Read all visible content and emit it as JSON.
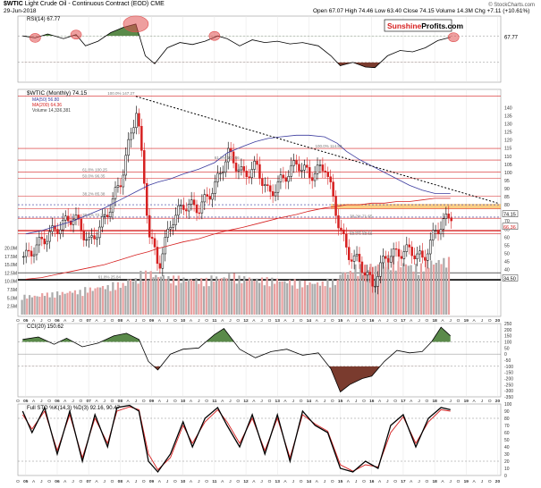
{
  "header": {
    "symbol": "$WTIC",
    "description": "Light Crude Oil - Continuous Contract (EOD)",
    "exchange": "CME",
    "date": "29-Jun-2018",
    "open": "Open 67.07",
    "high": "High 74.46",
    "low": "Low 63.40",
    "close": "Close 74.15",
    "volume": "Volume 14.3M",
    "chg": "Chg +7.11 (+10.61%)",
    "copyright": "© StockCharts.com"
  },
  "watermark": {
    "part1": "Sunshine",
    "part2": "Profits.com"
  },
  "colors": {
    "up": "#000000",
    "down": "#d62020",
    "ma50": "#3b3b9e",
    "ma200": "#d62020",
    "volume": "#aaaaaa",
    "volume_down": "#e8a0a0",
    "orange_band": "#f5a623",
    "highlight_circle": "#e05050"
  },
  "chart_data": [
    {
      "type": "line",
      "panel": "RSI",
      "title": "RSI(14) 67.77",
      "last_value_label": "67.77",
      "ylim": [
        0,
        100
      ],
      "y_ticks": [
        70,
        30
      ],
      "x": [
        2004.9,
        2005.3,
        2005.7,
        2006.2,
        2006.6,
        2006.9,
        2007.3,
        2007.7,
        2008.1,
        2008.5,
        2008.8,
        2009.1,
        2009.5,
        2009.9,
        2010.3,
        2010.7,
        2011.1,
        2011.4,
        2011.8,
        2012.2,
        2012.6,
        2013.0,
        2013.4,
        2013.8,
        2014.3,
        2014.7,
        2015.0,
        2015.4,
        2015.8,
        2016.1,
        2016.5,
        2016.9,
        2017.3,
        2017.7,
        2018.1,
        2018.5
      ],
      "values": [
        70,
        67,
        73,
        66,
        72,
        55,
        62,
        75,
        83,
        88,
        40,
        28,
        52,
        60,
        57,
        62,
        70,
        66,
        55,
        64,
        60,
        62,
        58,
        60,
        55,
        40,
        25,
        30,
        23,
        22,
        40,
        48,
        46,
        52,
        63,
        68
      ]
    },
    {
      "type": "candlestick",
      "panel": "price",
      "title": "$WTIC (Monthly) 74.15",
      "legend": [
        "MA(50) 56.80",
        "MA(200) 64.36",
        "Volume 14,336,381"
      ],
      "ylim": [
        2,
        150
      ],
      "y_ticks": [
        140,
        135,
        130,
        125,
        120,
        115,
        110,
        105,
        100,
        95,
        90,
        85,
        80,
        75,
        70,
        65,
        60,
        55,
        50,
        45,
        40,
        35
      ],
      "volume_ticks": [
        "20.0M",
        "17.5M",
        "15.0M",
        "12.5M",
        "10.0M",
        "7.5M",
        "5.0M",
        "2.5M"
      ],
      "price_labels": [
        "74.15",
        "66.36",
        "34.50"
      ],
      "fib_labels": [
        "100.0% 147.27",
        "100.0% 114.83",
        "61.8% 107.66",
        "61.8% 100.25",
        "50.0% 96.35",
        "38.2% 85.38",
        "38.2% 72.36",
        "38.2% 71.65",
        "61.8% 61.27",
        "50.0% 60.55",
        "61.8% 25.84"
      ],
      "x": [
        2005.0,
        2005.5,
        2006.0,
        2006.5,
        2007.0,
        2007.5,
        2008.0,
        2008.5,
        2008.9,
        2009.2,
        2009.6,
        2010.0,
        2010.5,
        2011.0,
        2011.4,
        2011.9,
        2012.3,
        2012.7,
        2013.1,
        2013.6,
        2014.0,
        2014.5,
        2014.9,
        2015.2,
        2015.6,
        2016.0,
        2016.4,
        2016.8,
        2017.2,
        2017.6,
        2018.0,
        2018.5
      ],
      "values": [
        48,
        58,
        66,
        73,
        56,
        72,
        95,
        140,
        62,
        42,
        70,
        80,
        78,
        92,
        112,
        98,
        104,
        86,
        95,
        106,
        98,
        104,
        70,
        50,
        44,
        30,
        48,
        50,
        52,
        46,
        64,
        74
      ],
      "ma50": [
        32,
        34,
        37,
        40,
        44,
        48,
        53,
        58,
        62,
        64,
        66,
        69,
        72,
        76,
        82,
        86,
        89,
        91,
        92,
        93,
        93,
        92,
        88,
        83,
        78,
        74,
        70,
        66,
        62,
        59,
        57,
        57
      ],
      "ma200": [
        14,
        15,
        17,
        19,
        21,
        23,
        26,
        29,
        31,
        33,
        35,
        37,
        39,
        42,
        44,
        46,
        48,
        50,
        52,
        54,
        56,
        58,
        59,
        60,
        60,
        61,
        61,
        62,
        62,
        63,
        64,
        64
      ],
      "resistance_line": {
        "x": [
          2008.5,
          2020.0
        ],
        "y": [
          147,
          81
        ]
      },
      "horizontal_levels": [
        147.27,
        114.83,
        107.66,
        100.25,
        96.35,
        85.38,
        80,
        77.5,
        72.36,
        71.65,
        64,
        62,
        38,
        33.6
      ],
      "orange_band": [
        77.5,
        80.5
      ],
      "volume_values": [
        5.2,
        5.8,
        6.1,
        6.5,
        7.2,
        7.8,
        8.5,
        9.8,
        11.5,
        10.8,
        10.2,
        9.9,
        9.6,
        10.3,
        10.9,
        10.2,
        9.8,
        9.7,
        9.3,
        9.0,
        8.8,
        9.4,
        11.8,
        13.2,
        13.8,
        15.6,
        14.2,
        13.4,
        14.6,
        15.1,
        14.8,
        14.3
      ]
    },
    {
      "type": "line",
      "panel": "CCI",
      "title": "CCI(20) 150.62",
      "ylim": [
        -350,
        250
      ],
      "y_ticks": [
        "250",
        "200",
        "150",
        "100",
        "50",
        "0",
        "-50",
        "-100",
        "-150",
        "-200",
        "-250",
        "-300",
        "-350"
      ],
      "x": [
        2004.9,
        2005.4,
        2005.9,
        2006.3,
        2006.8,
        2007.3,
        2007.8,
        2008.2,
        2008.6,
        2008.9,
        2009.2,
        2009.6,
        2010.0,
        2010.5,
        2011.0,
        2011.3,
        2011.8,
        2012.3,
        2012.8,
        2013.3,
        2013.8,
        2014.3,
        2014.7,
        2015.0,
        2015.3,
        2015.7,
        2016.0,
        2016.4,
        2016.8,
        2017.2,
        2017.6,
        2017.9,
        2018.2,
        2018.5
      ],
      "values": [
        120,
        140,
        80,
        130,
        60,
        90,
        150,
        170,
        120,
        -60,
        -130,
        0,
        40,
        50,
        160,
        210,
        40,
        -30,
        20,
        40,
        -10,
        10,
        -120,
        -310,
        -250,
        -200,
        -180,
        -60,
        30,
        10,
        20,
        100,
        220,
        150
      ]
    },
    {
      "type": "line",
      "panel": "Slow Stochastic",
      "title": "Full STO %K(14,3) %D(3) 92.16, 90.47",
      "ylim": [
        0,
        100
      ],
      "y_ticks": [
        "100",
        "90",
        "80",
        "70",
        "60",
        "50",
        "40",
        "30",
        "20",
        "10",
        "0"
      ],
      "x": [
        2004.9,
        2005.2,
        2005.6,
        2006.0,
        2006.4,
        2006.8,
        2007.2,
        2007.6,
        2007.9,
        2008.3,
        2008.6,
        2008.9,
        2009.2,
        2009.6,
        2010.0,
        2010.3,
        2010.7,
        2011.1,
        2011.4,
        2011.8,
        2012.2,
        2012.6,
        2013.0,
        2013.4,
        2013.8,
        2014.2,
        2014.6,
        2015.0,
        2015.4,
        2015.8,
        2016.2,
        2016.6,
        2017.0,
        2017.4,
        2017.8,
        2018.2,
        2018.5
      ],
      "k": [
        90,
        60,
        95,
        30,
        90,
        20,
        85,
        40,
        95,
        98,
        90,
        20,
        5,
        30,
        75,
        40,
        80,
        95,
        70,
        40,
        85,
        30,
        85,
        20,
        90,
        70,
        60,
        10,
        5,
        20,
        10,
        70,
        85,
        40,
        80,
        95,
        92
      ],
      "d": [
        85,
        65,
        90,
        35,
        85,
        25,
        80,
        45,
        90,
        96,
        92,
        30,
        8,
        25,
        70,
        45,
        75,
        92,
        75,
        45,
        80,
        35,
        80,
        25,
        85,
        72,
        62,
        15,
        6,
        15,
        12,
        60,
        82,
        45,
        75,
        92,
        90
      ]
    }
  ],
  "x_axis": {
    "labels": [
      "O",
      "05",
      "A",
      "J",
      "O",
      "06",
      "A",
      "J",
      "O",
      "07",
      "A",
      "J",
      "O",
      "08",
      "A",
      "J",
      "O",
      "09",
      "A",
      "J",
      "O",
      "10",
      "A",
      "J",
      "O",
      "11",
      "A",
      "J",
      "O",
      "12",
      "A",
      "J",
      "O",
      "13",
      "A",
      "J",
      "O",
      "14",
      "A",
      "J",
      "O",
      "15",
      "A",
      "J",
      "O",
      "16",
      "A",
      "J",
      "O",
      "17",
      "A",
      "J",
      "O",
      "18",
      "A",
      "J",
      "O",
      "19",
      "A",
      "J",
      "O",
      "20"
    ]
  }
}
